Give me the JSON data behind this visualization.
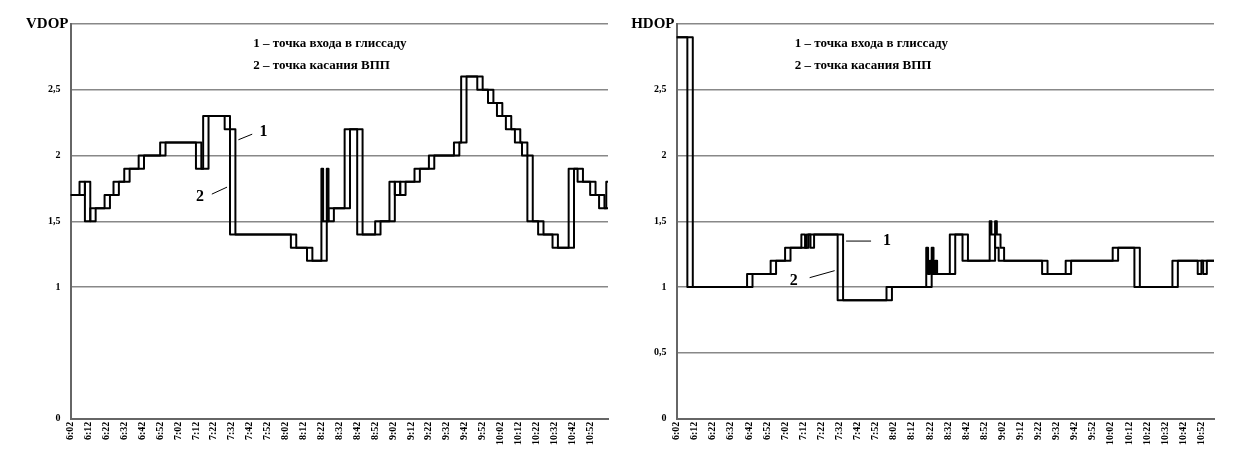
{
  "chart_data": [
    {
      "type": "step",
      "ylabel": "VDOP",
      "annotations": [
        "1 – точка входа в глиссаду",
        "2 – точка касания ВПП"
      ],
      "xlim": [
        6.033,
        11.033
      ],
      "ylim": [
        0,
        3
      ],
      "grid": "y",
      "xticks": [
        {
          "value": 6.033,
          "label": "6:02"
        },
        {
          "value": 6.2,
          "label": "6:12"
        },
        {
          "value": 6.367,
          "label": "6:22"
        },
        {
          "value": 6.533,
          "label": "6:32"
        },
        {
          "value": 6.7,
          "label": "6:42"
        },
        {
          "value": 6.867,
          "label": "6:52"
        },
        {
          "value": 7.033,
          "label": "7:02"
        },
        {
          "value": 7.2,
          "label": "7:12"
        },
        {
          "value": 7.367,
          "label": "7:22"
        },
        {
          "value": 7.533,
          "label": "7:32"
        },
        {
          "value": 7.7,
          "label": "7:42"
        },
        {
          "value": 7.867,
          "label": "7:52"
        },
        {
          "value": 8.033,
          "label": "8:02"
        },
        {
          "value": 8.2,
          "label": "8:12"
        },
        {
          "value": 8.367,
          "label": "8:22"
        },
        {
          "value": 8.533,
          "label": "8:32"
        },
        {
          "value": 8.7,
          "label": "8:42"
        },
        {
          "value": 8.867,
          "label": "8:52"
        },
        {
          "value": 9.033,
          "label": "9:02"
        },
        {
          "value": 9.2,
          "label": "9:12"
        },
        {
          "value": 9.367,
          "label": "9:22"
        },
        {
          "value": 9.533,
          "label": "9:32"
        },
        {
          "value": 9.7,
          "label": "9:42"
        },
        {
          "value": 9.867,
          "label": "9:52"
        },
        {
          "value": 10.033,
          "label": "10:02"
        },
        {
          "value": 10.2,
          "label": "10:12"
        },
        {
          "value": 10.367,
          "label": "10:22"
        },
        {
          "value": 10.533,
          "label": "10:32"
        },
        {
          "value": 10.7,
          "label": "10:42"
        },
        {
          "value": 10.867,
          "label": "10:52"
        }
      ],
      "yticks": [
        0,
        1,
        {
          "value": 1.5,
          "label": "1,5"
        },
        2,
        {
          "value": 2.5,
          "label": "2,5"
        },
        {
          "value": 3,
          "label": null
        }
      ],
      "series": [
        {
          "name": "1",
          "color": "#000000",
          "x": [
            6.033,
            6.167,
            6.217,
            6.267,
            6.4,
            6.483,
            6.583,
            6.717,
            6.917,
            7.25,
            7.317,
            7.517,
            7.567,
            8.133,
            8.283,
            8.417,
            8.433,
            8.483,
            8.633,
            8.75,
            8.917,
            9.05,
            9.1,
            9.15,
            9.283,
            9.417,
            9.65,
            9.717,
            9.867,
            9.967,
            10.05,
            10.133,
            10.217,
            10.283,
            10.333,
            10.433,
            10.567,
            10.717,
            10.8,
            10.917,
            11.0,
            11.033
          ],
          "values": [
            1.7,
            1.8,
            1.5,
            1.6,
            1.7,
            1.8,
            1.9,
            2.0,
            2.1,
            1.9,
            2.3,
            2.2,
            1.4,
            1.3,
            1.2,
            1.9,
            1.5,
            1.6,
            2.2,
            1.4,
            1.5,
            1.8,
            1.7,
            1.8,
            1.9,
            2.0,
            2.1,
            2.6,
            2.5,
            2.4,
            2.3,
            2.2,
            2.1,
            2.0,
            1.5,
            1.4,
            1.3,
            1.9,
            1.8,
            1.7,
            1.6,
            1.6
          ]
        },
        {
          "name": "2",
          "color": "#000000",
          "x": [
            6.033,
            6.117,
            6.167,
            6.217,
            6.35,
            6.433,
            6.533,
            6.667,
            6.867,
            7.2,
            7.267,
            7.467,
            7.517,
            8.083,
            8.233,
            8.367,
            8.383,
            8.433,
            8.583,
            8.7,
            8.867,
            9.0,
            9.05,
            9.1,
            9.233,
            9.367,
            9.6,
            9.667,
            9.817,
            9.917,
            10.0,
            10.083,
            10.167,
            10.233,
            10.283,
            10.383,
            10.517,
            10.667,
            10.75,
            10.867,
            10.95,
            11.017,
            11.033
          ],
          "values": [
            1.7,
            1.8,
            1.5,
            1.6,
            1.7,
            1.8,
            1.9,
            2.0,
            2.1,
            1.9,
            2.3,
            2.2,
            1.4,
            1.3,
            1.2,
            1.9,
            1.5,
            1.6,
            2.2,
            1.4,
            1.5,
            1.8,
            1.7,
            1.8,
            1.9,
            2.0,
            2.1,
            2.6,
            2.5,
            2.4,
            2.3,
            2.2,
            2.1,
            2.0,
            1.5,
            1.4,
            1.3,
            1.9,
            1.8,
            1.7,
            1.6,
            1.8,
            1.8
          ]
        }
      ]
    },
    {
      "type": "step",
      "ylabel": "HDOP",
      "annotations": [
        "1 – точка входа в глиссаду",
        "2 – точка касания ВПП"
      ],
      "xlim": [
        6.033,
        10.983
      ],
      "ylim": [
        0,
        3
      ],
      "grid": "y",
      "xticks": [
        {
          "value": 6.033,
          "label": "6:02"
        },
        {
          "value": 6.2,
          "label": "6:12"
        },
        {
          "value": 6.367,
          "label": "6:22"
        },
        {
          "value": 6.533,
          "label": "6:32"
        },
        {
          "value": 6.7,
          "label": "6:42"
        },
        {
          "value": 6.867,
          "label": "6:52"
        },
        {
          "value": 7.033,
          "label": "7:02"
        },
        {
          "value": 7.2,
          "label": "7:12"
        },
        {
          "value": 7.367,
          "label": "7:22"
        },
        {
          "value": 7.533,
          "label": "7:32"
        },
        {
          "value": 7.7,
          "label": "7:42"
        },
        {
          "value": 7.867,
          "label": "7:52"
        },
        {
          "value": 8.033,
          "label": "8:02"
        },
        {
          "value": 8.2,
          "label": "8:12"
        },
        {
          "value": 8.367,
          "label": "8:22"
        },
        {
          "value": 8.533,
          "label": "8:32"
        },
        {
          "value": 8.7,
          "label": "8:42"
        },
        {
          "value": 8.867,
          "label": "8:52"
        },
        {
          "value": 9.033,
          "label": "9:02"
        },
        {
          "value": 9.2,
          "label": "9:12"
        },
        {
          "value": 9.367,
          "label": "9:22"
        },
        {
          "value": 9.533,
          "label": "9:32"
        },
        {
          "value": 9.7,
          "label": "9:42"
        },
        {
          "value": 9.867,
          "label": "9:52"
        },
        {
          "value": 10.033,
          "label": "10:02"
        },
        {
          "value": 10.2,
          "label": "10:12"
        },
        {
          "value": 10.367,
          "label": "10:22"
        },
        {
          "value": 10.533,
          "label": "10:32"
        },
        {
          "value": 10.7,
          "label": "10:42"
        },
        {
          "value": 10.867,
          "label": "10:52"
        }
      ],
      "yticks": [
        0,
        {
          "value": 0.5,
          "label": "0,5"
        },
        1,
        {
          "value": 1.5,
          "label": "1,5"
        },
        2,
        {
          "value": 2.5,
          "label": "2,5"
        },
        {
          "value": 3,
          "label": null
        }
      ],
      "series": [
        {
          "name": "1",
          "color": "#000000",
          "x": [
            6.033,
            6.183,
            6.733,
            6.95,
            7.083,
            7.233,
            7.267,
            7.3,
            7.567,
            8.017,
            8.383,
            8.4,
            8.417,
            8.433,
            8.6,
            8.717,
            8.967,
            8.983,
            9.017,
            9.05,
            9.45,
            9.667,
            10.1,
            10.3,
            10.65,
            10.883,
            10.917,
            10.983
          ],
          "values": [
            2.9,
            1.0,
            1.1,
            1.2,
            1.3,
            1.4,
            1.3,
            1.4,
            0.9,
            1.0,
            1.3,
            1.1,
            1.2,
            1.1,
            1.4,
            1.2,
            1.5,
            1.4,
            1.3,
            1.2,
            1.1,
            1.2,
            1.3,
            1.0,
            1.2,
            1.1,
            1.2,
            1.2
          ]
        },
        {
          "name": "2",
          "color": "#000000",
          "x": [
            6.033,
            6.133,
            6.683,
            6.9,
            7.033,
            7.183,
            7.217,
            7.25,
            7.517,
            7.967,
            8.333,
            8.35,
            8.367,
            8.383,
            8.55,
            8.667,
            8.917,
            8.933,
            8.967,
            9.0,
            9.4,
            9.617,
            10.05,
            10.25,
            10.6,
            10.833,
            10.867,
            10.983
          ],
          "values": [
            2.9,
            1.0,
            1.1,
            1.2,
            1.3,
            1.4,
            1.3,
            1.4,
            0.9,
            1.0,
            1.3,
            1.1,
            1.2,
            1.1,
            1.4,
            1.2,
            1.5,
            1.4,
            1.3,
            1.2,
            1.1,
            1.2,
            1.3,
            1.0,
            1.2,
            1.1,
            1.2,
            1.2
          ]
        }
      ]
    }
  ]
}
